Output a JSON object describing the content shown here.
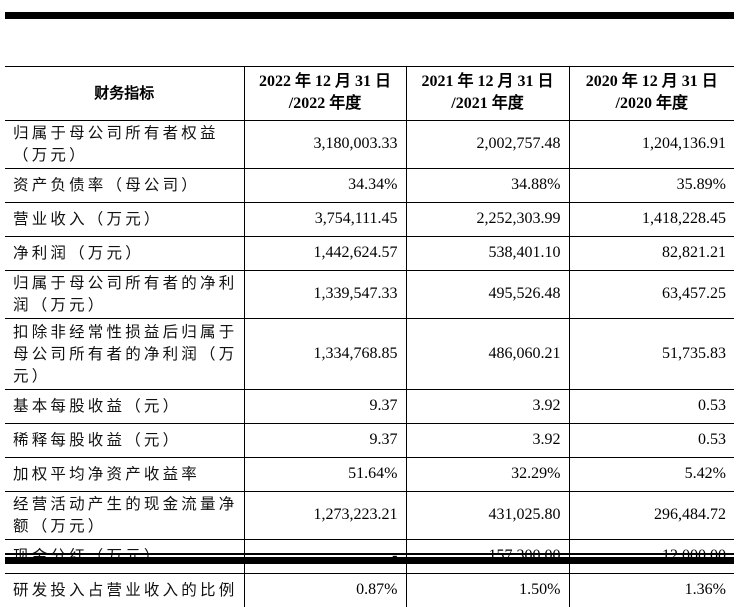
{
  "table": {
    "headers": [
      {
        "line1": "财务指标",
        "line2": ""
      },
      {
        "line1": "2022 年 12 月 31 日",
        "line2": "/2022 年度"
      },
      {
        "line1": "2021 年 12 月 31 日",
        "line2": "/2021 年度"
      },
      {
        "line1": "2020 年 12 月 31 日",
        "line2": "/2020 年度"
      }
    ],
    "rows": [
      {
        "label": "归属于母公司所有者权益（万元）",
        "v2022": "3,180,003.33",
        "v2021": "2,002,757.48",
        "v2020": "1,204,136.91"
      },
      {
        "label": "资产负债率（母公司）",
        "v2022": "34.34%",
        "v2021": "34.88%",
        "v2020": "35.89%"
      },
      {
        "label": "营业收入（万元）",
        "v2022": "3,754,111.45",
        "v2021": "2,252,303.99",
        "v2020": "1,418,228.45"
      },
      {
        "label": "净利润（万元）",
        "v2022": "1,442,624.57",
        "v2021": "538,401.10",
        "v2020": "82,821.21"
      },
      {
        "label": "归属于母公司所有者的净利润（万元）",
        "v2022": "1,339,547.33",
        "v2021": "495,526.48",
        "v2020": "63,457.25"
      },
      {
        "label": "扣除非经常性损益后归属于母公司所有者的净利润（万元）",
        "v2022": "1,334,768.85",
        "v2021": "486,060.21",
        "v2020": "51,735.83"
      },
      {
        "label": "基本每股收益（元）",
        "v2022": "9.37",
        "v2021": "3.92",
        "v2020": "0.53"
      },
      {
        "label": "稀释每股收益（元）",
        "v2022": "9.37",
        "v2021": "3.92",
        "v2020": "0.53"
      },
      {
        "label": "加权平均净资产收益率",
        "v2022": "51.64%",
        "v2021": "32.29%",
        "v2020": "5.42%"
      },
      {
        "label": "经营活动产生的现金流量净额（万元）",
        "v2022": "1,273,223.21",
        "v2021": "431,025.80",
        "v2020": "296,484.72"
      },
      {
        "label": "现金分红（万元）",
        "v2022": "-",
        "v2021": "157,300.00",
        "v2020": "12,000.00"
      },
      {
        "label": "研发投入占营业收入的比例",
        "v2022": "0.87%",
        "v2021": "1.50%",
        "v2020": "1.36%"
      }
    ]
  }
}
